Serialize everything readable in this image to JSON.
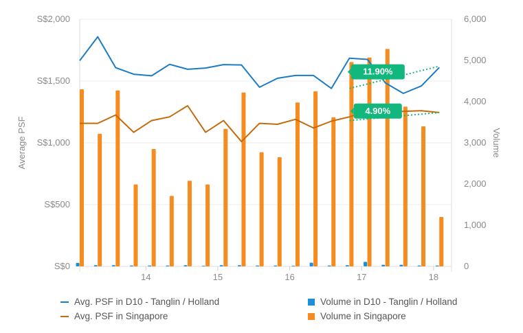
{
  "chart_data": {
    "type": "bar+line",
    "title": "",
    "y_left": {
      "label": "Average PSF",
      "ylim": [
        0,
        2000
      ],
      "ticks": [
        "S$0",
        "S$500",
        "S$1,000",
        "S$1,500",
        "S$2,000"
      ]
    },
    "y_right": {
      "label": "Volume",
      "ylim": [
        0,
        6000
      ],
      "ticks": [
        "0",
        "1,000",
        "2,000",
        "3,000",
        "4,000",
        "5,000",
        "6,000"
      ]
    },
    "x": {
      "range": [
        13.08,
        18.25
      ],
      "ticks": [
        "14",
        "15",
        "16",
        "17",
        "18"
      ]
    },
    "x_points": [
      13.08,
      13.33,
      13.58,
      13.83,
      14.08,
      14.33,
      14.58,
      14.83,
      15.08,
      15.33,
      15.58,
      15.83,
      16.08,
      16.33,
      16.58,
      16.83,
      17.08,
      17.33,
      17.58,
      17.83,
      18.08
    ],
    "series": [
      {
        "name": "Avg. PSF in D10 - Tanglin / Holland",
        "kind": "line",
        "axis": "left",
        "color": "#1a7cc4",
        "values": [
          1665,
          1858,
          1608,
          1555,
          1542,
          1635,
          1595,
          1605,
          1633,
          1630,
          1450,
          1522,
          1545,
          1545,
          1440,
          1685,
          1675,
          1485,
          1400,
          1460,
          1610
        ]
      },
      {
        "name": "Avg. PSF in Singapore",
        "kind": "line",
        "axis": "left",
        "color": "#c56a0a",
        "values": [
          1158,
          1158,
          1225,
          1085,
          1180,
          1210,
          1300,
          1085,
          1180,
          1010,
          1158,
          1150,
          1190,
          1120,
          1175,
          1210,
          1255,
          1240,
          1255,
          1260,
          1245
        ]
      },
      {
        "name": "Volume in D10 - Tanglin / Holland",
        "kind": "bar",
        "axis": "right",
        "color": "#1a8fdc",
        "values": [
          85,
          30,
          30,
          20,
          20,
          20,
          30,
          15,
          30,
          30,
          20,
          20,
          15,
          90,
          20,
          30,
          110,
          40,
          40,
          20,
          20
        ]
      },
      {
        "name": "Volume in Singapore",
        "kind": "bar",
        "axis": "right",
        "color": "#f68b1f",
        "values": [
          4300,
          3220,
          4270,
          1990,
          2850,
          1710,
          2080,
          1990,
          3340,
          4220,
          2770,
          2650,
          3980,
          4250,
          3620,
          4960,
          5070,
          5280,
          3880,
          3400,
          1200
        ]
      }
    ],
    "annotations": [
      {
        "label": "11.90%",
        "color": "#12b77d",
        "trend_from": {
          "x": 16.83,
          "y": 1440
        },
        "trend_to": {
          "x": 18.08,
          "y": 1620
        }
      },
      {
        "label": "4.90%",
        "color": "#12b77d",
        "trend_from": {
          "x": 16.83,
          "y": 1180
        },
        "trend_to": {
          "x": 18.08,
          "y": 1245
        }
      }
    ],
    "grid": "horizontal",
    "legend_position": "bottom"
  }
}
